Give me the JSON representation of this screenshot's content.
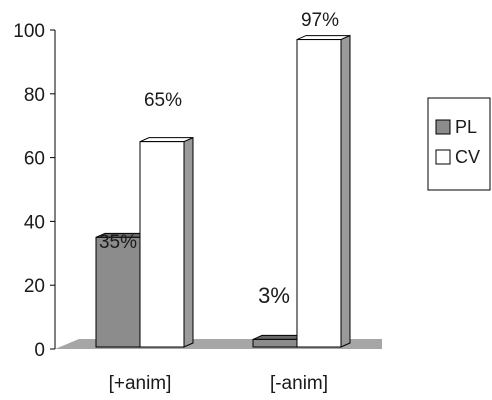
{
  "chart_data": {
    "type": "bar",
    "categories": [
      "[+anim]",
      "[-anim]"
    ],
    "series": [
      {
        "name": "PL",
        "values": [
          35,
          3
        ],
        "color": "#8c8c8c"
      },
      {
        "name": "CV",
        "values": [
          65,
          97
        ],
        "color": "#ffffff"
      }
    ],
    "data_labels": [
      [
        "35%",
        "3%"
      ],
      [
        "65%",
        "97%"
      ]
    ],
    "yticks": [
      0,
      20,
      40,
      60,
      80,
      100
    ],
    "ylim": [
      0,
      100
    ],
    "title": "",
    "xlabel": "",
    "ylabel": "",
    "legend_position": "right",
    "floor_color": "#a6a6a6",
    "grid": false,
    "style": "3d-bar"
  }
}
